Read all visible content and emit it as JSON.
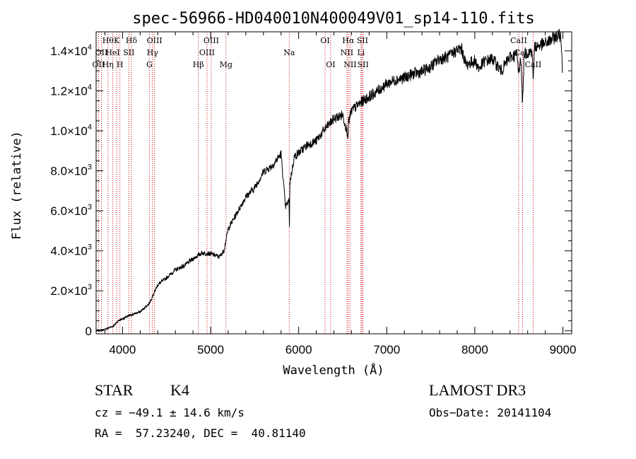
{
  "chart_data": {
    "type": "line",
    "title": "spec-56966-HD040010N400049V01_sp14-110.fits",
    "xlabel": "Wavelength (Å)",
    "ylabel": "Flux (relative)",
    "xlim": [
      3700,
      9100
    ],
    "ylim": [
      -150,
      14950
    ],
    "x_ticks": [
      {
        "value": 4000,
        "label": "4000"
      },
      {
        "value": 5000,
        "label": "5000"
      },
      {
        "value": 6000,
        "label": "6000"
      },
      {
        "value": 7000,
        "label": "7000"
      },
      {
        "value": 8000,
        "label": "8000"
      },
      {
        "value": 9000,
        "label": "9000"
      }
    ],
    "y_ticks": [
      {
        "value": 0,
        "mant": "0",
        "exp": ""
      },
      {
        "value": 2000,
        "mant": "2.0×10",
        "exp": "3"
      },
      {
        "value": 4000,
        "mant": "4.0×10",
        "exp": "3"
      },
      {
        "value": 6000,
        "mant": "6.0×10",
        "exp": "3"
      },
      {
        "value": 8000,
        "mant": "8.0×10",
        "exp": "3"
      },
      {
        "value": 10000,
        "mant": "1.0×10",
        "exp": "4"
      },
      {
        "value": 12000,
        "mant": "1.2×10",
        "exp": "4"
      },
      {
        "value": 14000,
        "mant": "1.4×10",
        "exp": "4"
      }
    ],
    "series": [
      {
        "color": "#000000",
        "x": [
          3700,
          3800,
          3900,
          3950,
          4000,
          4100,
          4200,
          4300,
          4400,
          4500,
          4600,
          4700,
          4800,
          4900,
          5000,
          5100,
          5150,
          5200,
          5300,
          5400,
          5500,
          5600,
          5700,
          5800,
          5850,
          5890,
          5895,
          5900,
          5950,
          6000,
          6100,
          6200,
          6300,
          6400,
          6500,
          6560,
          6565,
          6600,
          6700,
          6800,
          6900,
          7000,
          7100,
          7200,
          7300,
          7400,
          7500,
          7600,
          7700,
          7800,
          7850,
          7900,
          8000,
          8050,
          8100,
          8200,
          8300,
          8400,
          8480,
          8498,
          8520,
          8542,
          8560,
          8600,
          8650,
          8662,
          8680,
          8750,
          8800,
          8850,
          8900,
          8950,
          8980,
          8995
        ],
        "y": [
          0,
          70,
          250,
          500,
          600,
          800,
          950,
          1350,
          2300,
          2650,
          3050,
          3250,
          3600,
          3900,
          3850,
          3700,
          4000,
          5100,
          5900,
          6700,
          7150,
          7950,
          8250,
          8850,
          6200,
          6500,
          5300,
          7400,
          8700,
          8900,
          9300,
          9500,
          10100,
          10600,
          10800,
          9800,
          10400,
          11000,
          11400,
          11700,
          12000,
          12350,
          12550,
          12650,
          12850,
          12950,
          13200,
          13600,
          13700,
          14050,
          14100,
          13300,
          13500,
          13100,
          13450,
          13600,
          13000,
          13700,
          13800,
          12800,
          13850,
          11300,
          13900,
          13900,
          14000,
          12600,
          14200,
          14300,
          14350,
          14500,
          14650,
          14800,
          14700,
          12900
        ]
      }
    ],
    "line_labels_top": [
      {
        "x": 3835,
        "text": "Hθ"
      },
      {
        "x": 3934,
        "text": "K"
      },
      {
        "x": 4101,
        "text": "Hδ"
      },
      {
        "x": 4363,
        "text": "OIII"
      },
      {
        "x": 5007,
        "text": "OIII"
      },
      {
        "x": 6300,
        "text": "OI"
      },
      {
        "x": 6563,
        "text": "Hα"
      },
      {
        "x": 6724,
        "text": "SII"
      },
      {
        "x": 8498,
        "text": "CaII"
      }
    ],
    "line_labels_mid": [
      {
        "x": 3760,
        "text": "OII"
      },
      {
        "x": 3889,
        "text": "HeI"
      },
      {
        "x": 4072,
        "text": "SII"
      },
      {
        "x": 4340,
        "text": "Hγ"
      },
      {
        "x": 4959,
        "text": "OIII"
      },
      {
        "x": 5893,
        "text": "Na"
      },
      {
        "x": 6548,
        "text": "NII"
      },
      {
        "x": 6708,
        "text": "Li"
      },
      {
        "x": 8542,
        "text": "CaII"
      }
    ],
    "line_labels_low": [
      {
        "x": 3727,
        "text": "OII"
      },
      {
        "x": 3835,
        "text": "Hη"
      },
      {
        "x": 3970,
        "text": "H"
      },
      {
        "x": 4305,
        "text": "G"
      },
      {
        "x": 4861,
        "text": "Hβ"
      },
      {
        "x": 5175,
        "text": "Mg"
      },
      {
        "x": 6363,
        "text": "OI"
      },
      {
        "x": 6584,
        "text": "NII"
      },
      {
        "x": 6731,
        "text": "SII"
      },
      {
        "x": 8662,
        "text": "CaII"
      }
    ],
    "line_markers": [
      3727,
      3760,
      3835,
      3889,
      3934,
      3970,
      4072,
      4101,
      4305,
      4340,
      4363,
      4861,
      4959,
      5007,
      5175,
      5893,
      6300,
      6363,
      6548,
      6563,
      6584,
      6708,
      6717,
      6731,
      8498,
      8542,
      8662
    ],
    "marker_color": "#cc0000"
  },
  "info": {
    "object_class": "STAR",
    "subclass": "K4",
    "cz": "cz = −49.1 ± 14.6 km/s",
    "coords": "RA =  57.23240, DEC =  40.81140",
    "survey": "LAMOST DR3",
    "obs_date": "Obs−Date: 20141104"
  }
}
